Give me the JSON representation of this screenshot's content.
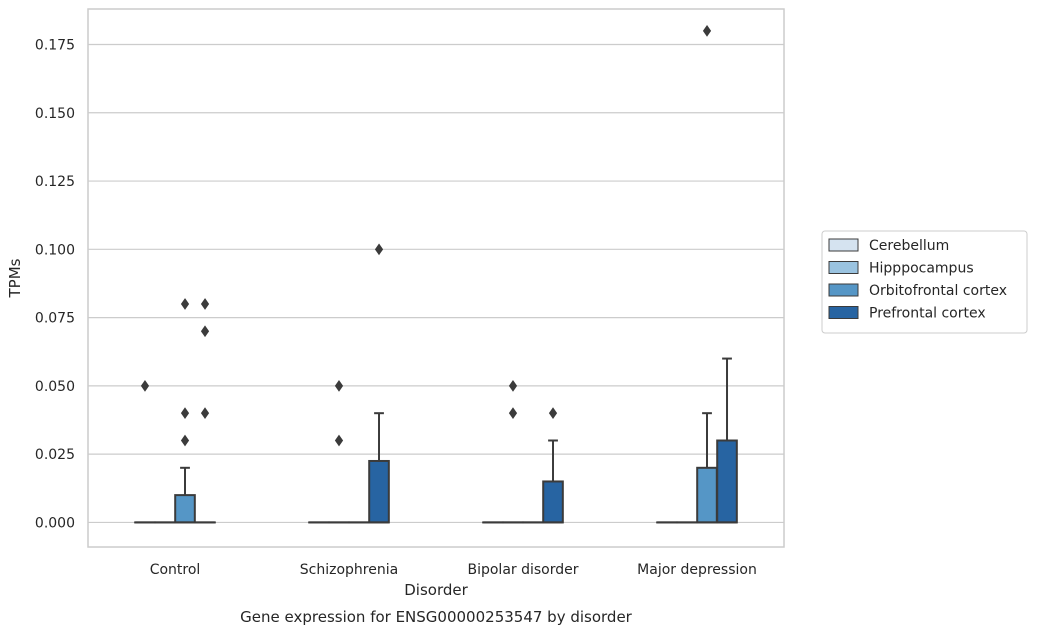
{
  "chart_data": {
    "type": "box",
    "title": "Gene expression for ENSG00000253547 by disorder",
    "xlabel": "Disorder",
    "ylabel": "TPMs",
    "ylim": [
      -0.009,
      0.188
    ],
    "yticks": [
      "0.000",
      "0.025",
      "0.050",
      "0.075",
      "0.100",
      "0.125",
      "0.150",
      "0.175"
    ],
    "categories": [
      "Control",
      "Schizophrenia",
      "Bipolar disorder",
      "Major depression"
    ],
    "grid": true,
    "legend_position": "right",
    "series": [
      {
        "name": "Cerebellum",
        "color": "#d5e3f0",
        "boxes": [
          {
            "q1": 0,
            "median": 0,
            "q3": 0,
            "whislo": 0,
            "whishi": 0,
            "fliers": [
              0.05
            ]
          },
          {
            "q1": 0,
            "median": 0,
            "q3": 0,
            "whislo": 0,
            "whishi": 0,
            "fliers": []
          },
          {
            "q1": 0,
            "median": 0,
            "q3": 0,
            "whislo": 0,
            "whishi": 0,
            "fliers": []
          },
          {
            "q1": 0,
            "median": 0,
            "q3": 0,
            "whislo": 0,
            "whishi": 0,
            "fliers": []
          }
        ]
      },
      {
        "name": "Hipppocampus",
        "color": "#9ac3e0",
        "boxes": [
          {
            "q1": 0,
            "median": 0,
            "q3": 0,
            "whislo": 0,
            "whishi": 0,
            "fliers": []
          },
          {
            "q1": 0,
            "median": 0,
            "q3": 0,
            "whislo": 0,
            "whishi": 0,
            "fliers": [
              0.05,
              0.03
            ]
          },
          {
            "q1": 0,
            "median": 0,
            "q3": 0,
            "whislo": 0,
            "whishi": 0,
            "fliers": [
              0.05,
              0.04
            ]
          },
          {
            "q1": 0,
            "median": 0,
            "q3": 0,
            "whislo": 0,
            "whishi": 0,
            "fliers": []
          }
        ]
      },
      {
        "name": "Orbitofrontal cortex",
        "color": "#5596c6",
        "boxes": [
          {
            "q1": 0,
            "median": 0,
            "q3": 0.01,
            "whislo": 0,
            "whishi": 0.02,
            "fliers": [
              0.08,
              0.04,
              0.03
            ]
          },
          {
            "q1": 0,
            "median": 0,
            "q3": 0,
            "whislo": 0,
            "whishi": 0,
            "fliers": []
          },
          {
            "q1": 0,
            "median": 0,
            "q3": 0,
            "whislo": 0,
            "whishi": 0,
            "fliers": []
          },
          {
            "q1": 0,
            "median": 0,
            "q3": 0.02,
            "whislo": 0,
            "whishi": 0.04,
            "fliers": [
              0.18
            ]
          }
        ]
      },
      {
        "name": "Prefrontal cortex",
        "color": "#2764a2",
        "boxes": [
          {
            "q1": 0,
            "median": 0,
            "q3": 0,
            "whislo": 0,
            "whishi": 0,
            "fliers": [
              0.08,
              0.07,
              0.04
            ]
          },
          {
            "q1": 0,
            "median": 0,
            "q3": 0.0225,
            "whislo": 0,
            "whishi": 0.04,
            "fliers": [
              0.1
            ]
          },
          {
            "q1": 0,
            "median": 0,
            "q3": 0.015,
            "whislo": 0,
            "whishi": 0.03,
            "fliers": [
              0.04
            ]
          },
          {
            "q1": 0,
            "median": 0,
            "q3": 0.03,
            "whislo": 0,
            "whishi": 0.06,
            "fliers": []
          }
        ]
      }
    ]
  }
}
